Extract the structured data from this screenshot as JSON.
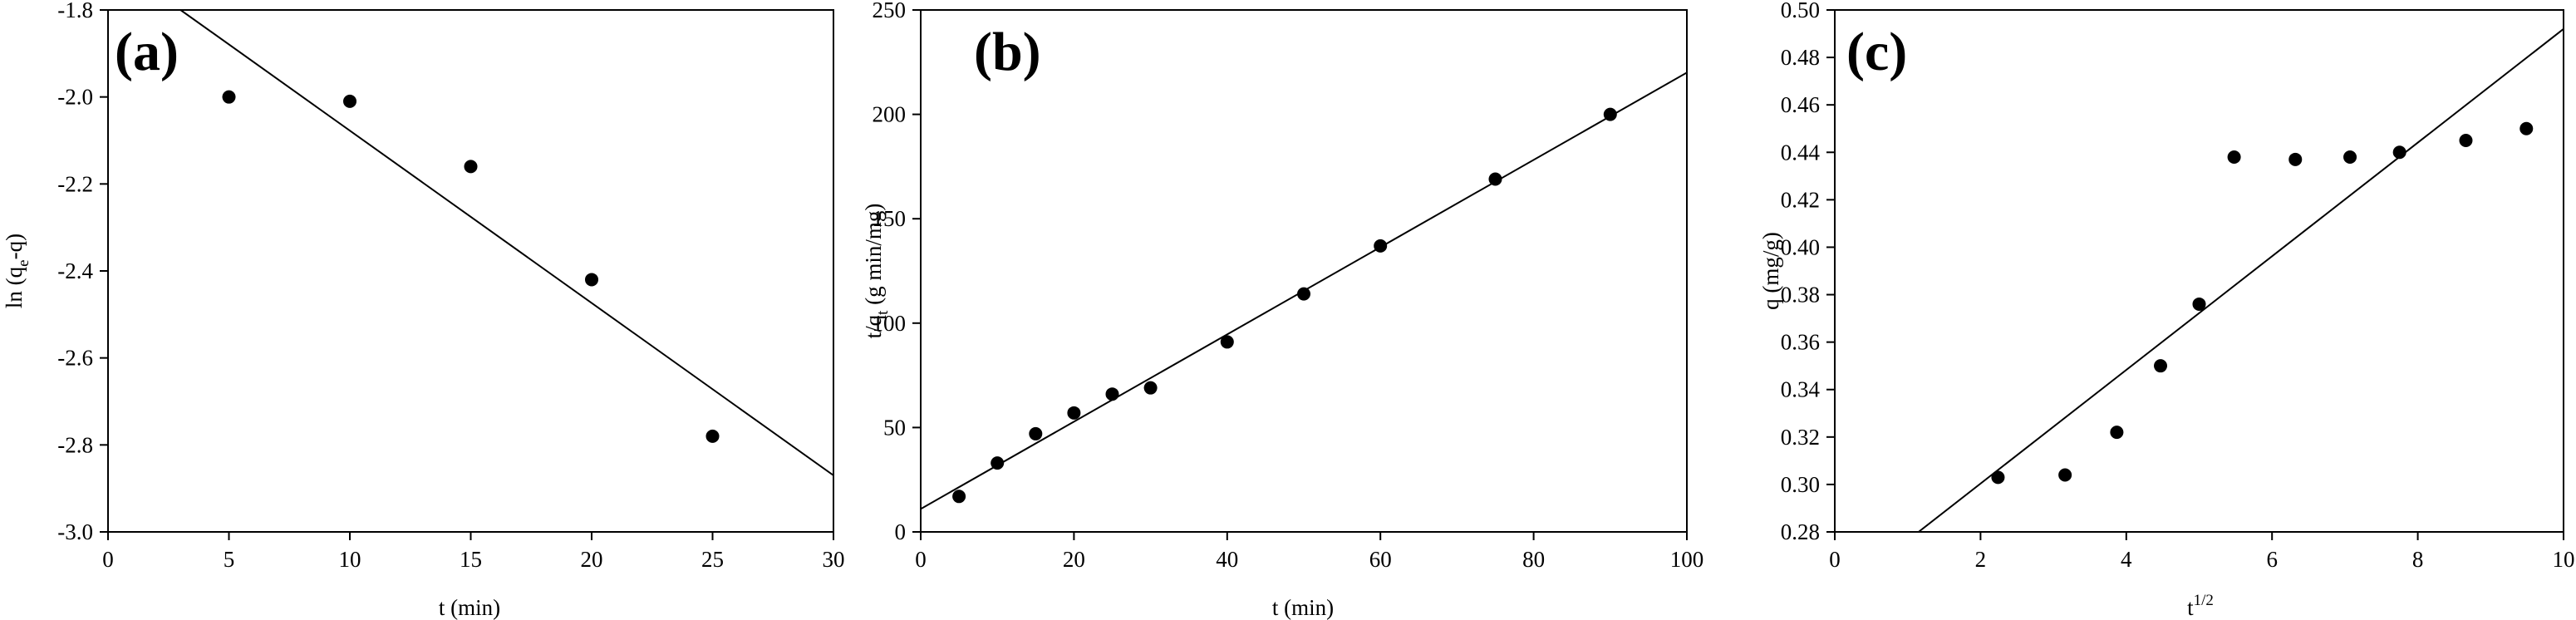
{
  "chart_data": [
    {
      "type": "scatter",
      "panel": "(a)",
      "xlabel": "t (min)",
      "ylabel_main": "ln (q",
      "ylabel_sub": "e",
      "ylabel_tail": "-q)",
      "xlim": [
        0,
        30
      ],
      "ylim": [
        -3.0,
        -1.8
      ],
      "xticks": [
        0,
        5,
        10,
        15,
        20,
        25,
        30
      ],
      "yticks": [
        -3.0,
        -2.8,
        -2.6,
        -2.4,
        -2.2,
        -2.0,
        -1.8
      ],
      "ytick_decimals": 1,
      "grid": false,
      "points": [
        {
          "x": 5,
          "y": -2.0
        },
        {
          "x": 10,
          "y": -2.01
        },
        {
          "x": 15,
          "y": -2.16
        },
        {
          "x": 20,
          "y": -2.42
        },
        {
          "x": 25,
          "y": -2.78
        }
      ],
      "fit_line": [
        {
          "x": 3.0,
          "y": -1.8
        },
        {
          "x": 30,
          "y": -2.87
        }
      ]
    },
    {
      "type": "scatter",
      "panel": "(b)",
      "xlabel": "t (min)",
      "ylabel_main": "t/q",
      "ylabel_sub": "t",
      "ylabel_tail": " (g min/mg)",
      "xlim": [
        0,
        100
      ],
      "ylim": [
        0,
        250
      ],
      "xticks": [
        0,
        20,
        40,
        60,
        80,
        100
      ],
      "yticks": [
        0,
        50,
        100,
        150,
        200,
        250
      ],
      "ytick_decimals": 0,
      "grid": false,
      "points": [
        {
          "x": 5,
          "y": 17
        },
        {
          "x": 10,
          "y": 33
        },
        {
          "x": 15,
          "y": 47
        },
        {
          "x": 20,
          "y": 57
        },
        {
          "x": 25,
          "y": 66
        },
        {
          "x": 30,
          "y": 69
        },
        {
          "x": 40,
          "y": 91
        },
        {
          "x": 50,
          "y": 114
        },
        {
          "x": 60,
          "y": 137
        },
        {
          "x": 75,
          "y": 169
        },
        {
          "x": 90,
          "y": 200
        }
      ],
      "fit_line": [
        {
          "x": 0,
          "y": 11
        },
        {
          "x": 100,
          "y": 220
        }
      ]
    },
    {
      "type": "scatter",
      "panel": "(c)",
      "xlabel_main": "t",
      "xlabel_sup": "1/2",
      "ylabel_main": "q (mg/g)",
      "xlim": [
        0,
        10
      ],
      "ylim": [
        0.28,
        0.5
      ],
      "xticks": [
        0,
        2,
        4,
        6,
        8,
        10
      ],
      "yticks": [
        0.28,
        0.3,
        0.32,
        0.34,
        0.36,
        0.38,
        0.4,
        0.42,
        0.44,
        0.46,
        0.48,
        0.5
      ],
      "ytick_decimals": 2,
      "grid": false,
      "points": [
        {
          "x": 2.24,
          "y": 0.303
        },
        {
          "x": 3.16,
          "y": 0.304
        },
        {
          "x": 3.87,
          "y": 0.322
        },
        {
          "x": 4.47,
          "y": 0.35
        },
        {
          "x": 5.0,
          "y": 0.376
        },
        {
          "x": 5.48,
          "y": 0.438
        },
        {
          "x": 6.32,
          "y": 0.437
        },
        {
          "x": 7.07,
          "y": 0.438
        },
        {
          "x": 7.75,
          "y": 0.44
        },
        {
          "x": 8.66,
          "y": 0.445
        },
        {
          "x": 9.49,
          "y": 0.45
        }
      ],
      "fit_line": [
        {
          "x": 1.15,
          "y": 0.28
        },
        {
          "x": 10,
          "y": 0.492
        }
      ]
    }
  ]
}
